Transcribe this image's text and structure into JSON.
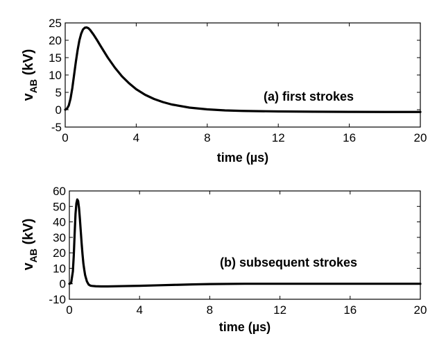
{
  "chart_data": [
    {
      "type": "line",
      "annotation": "(a) first strokes",
      "xlabel": "time (µs)",
      "ylabel_main": "v",
      "ylabel_sub": "AB",
      "ylabel_unit": " (kV)",
      "xlim": [
        0,
        20
      ],
      "ylim": [
        -5,
        25
      ],
      "xticks": [
        0,
        4,
        8,
        12,
        16,
        20
      ],
      "yticks": [
        -5,
        0,
        5,
        10,
        15,
        20,
        25
      ],
      "grid": false,
      "series": [
        {
          "x": [
            0,
            0.1,
            0.2,
            0.3,
            0.4,
            0.5,
            0.6,
            0.7,
            0.8,
            0.9,
            1.0,
            1.1,
            1.2,
            1.3,
            1.4,
            1.6,
            1.8,
            2.0,
            2.4,
            2.8,
            3.2,
            3.6,
            4.0,
            4.5,
            5.0,
            5.5,
            6.0,
            7.0,
            8.0,
            9.0,
            10.0,
            12.0,
            14.0,
            16.0,
            18.0,
            20.0
          ],
          "y": [
            0,
            0.3,
            1.2,
            3.2,
            6.2,
            10.0,
            13.8,
            17.2,
            20.0,
            21.9,
            23.1,
            23.6,
            23.7,
            23.5,
            23.0,
            21.6,
            20.0,
            18.3,
            15.0,
            12.1,
            9.6,
            7.6,
            5.9,
            4.3,
            3.1,
            2.2,
            1.5,
            0.6,
            0.1,
            -0.2,
            -0.35,
            -0.5,
            -0.58,
            -0.62,
            -0.65,
            -0.65
          ]
        }
      ]
    },
    {
      "type": "line",
      "annotation": "(b) subsequent strokes",
      "xlabel": "time (µs)",
      "ylabel_main": "v",
      "ylabel_sub": "AB",
      "ylabel_unit": " (kV)",
      "xlim": [
        0,
        20
      ],
      "ylim": [
        -10,
        60
      ],
      "xticks": [
        0,
        4,
        8,
        12,
        16,
        20
      ],
      "yticks": [
        -10,
        0,
        10,
        20,
        30,
        40,
        50,
        60
      ],
      "grid": false,
      "series": [
        {
          "x": [
            0,
            0.1,
            0.2,
            0.25,
            0.3,
            0.35,
            0.4,
            0.45,
            0.5,
            0.55,
            0.6,
            0.65,
            0.7,
            0.75,
            0.8,
            0.85,
            0.9,
            1.0,
            1.1,
            1.2,
            1.3,
            1.5,
            1.8,
            2.2,
            3.0,
            4.0,
            5.0,
            6.0,
            7.0,
            8.0,
            10.0,
            12.0,
            14.0,
            16.0,
            18.0,
            20.0
          ],
          "y": [
            0,
            0.5,
            8,
            18,
            32,
            45,
            52,
            54.5,
            53.5,
            49,
            42,
            34,
            26,
            19,
            13,
            9,
            5.5,
            1.5,
            -0.5,
            -1.2,
            -1.4,
            -1.6,
            -1.7,
            -1.7,
            -1.5,
            -1.3,
            -1.0,
            -0.7,
            -0.4,
            -0.2,
            0,
            0,
            0,
            0,
            0,
            0
          ]
        }
      ]
    }
  ]
}
